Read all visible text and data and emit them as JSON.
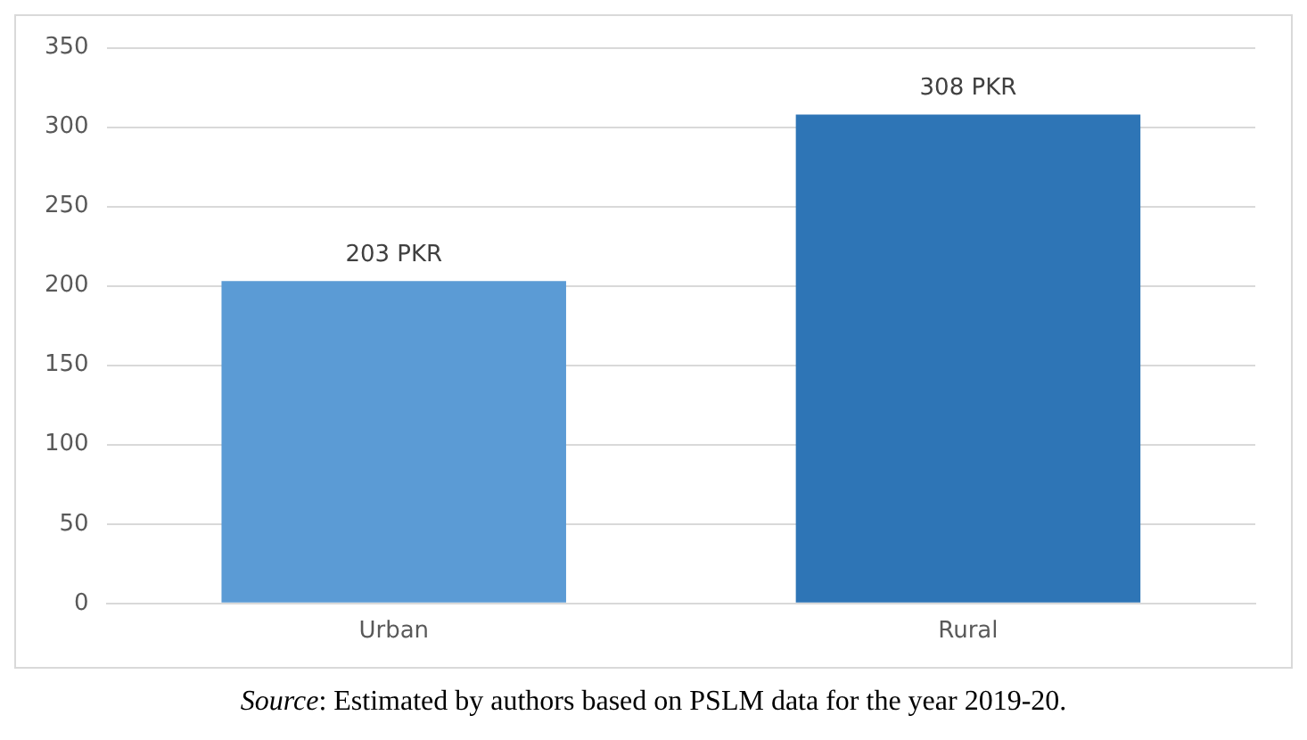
{
  "chart_data": {
    "type": "bar",
    "categories": [
      "Urban",
      "Rural"
    ],
    "values": [
      203,
      308
    ],
    "colors": [
      "#5b9bd5",
      "#2e75b6"
    ],
    "value_labels": [
      "203 PKR",
      "308 PKR"
    ],
    "ylim": [
      0,
      350
    ],
    "yticks": [
      0,
      50,
      100,
      150,
      200,
      250,
      300,
      350
    ],
    "grid": "y",
    "legend": false,
    "annotations": [
      "Source: Estimated by authors based on PSLM data for the year 2019-20."
    ]
  }
}
